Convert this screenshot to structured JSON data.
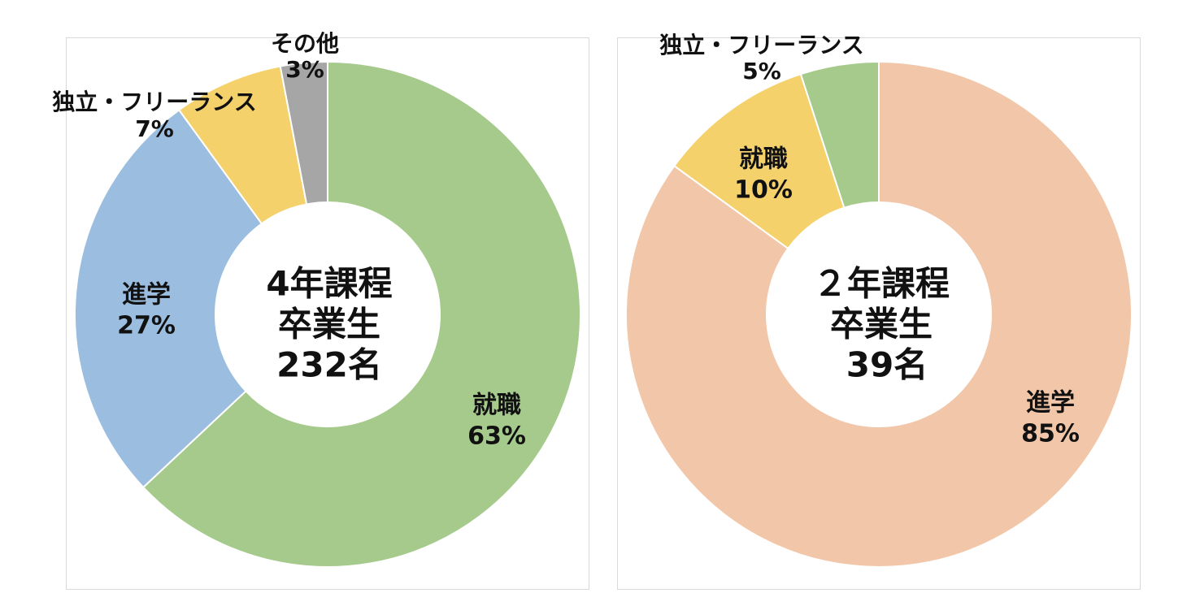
{
  "chart_data": [
    {
      "type": "pie",
      "subtype": "donut",
      "center_title": {
        "line1": "4年課程",
        "line2": "卒業生",
        "line3": "232名"
      },
      "slices": [
        {
          "label": "就職",
          "value": 63,
          "value_label": "63%",
          "color": "#a5ca8b"
        },
        {
          "label": "進学",
          "value": 27,
          "value_label": "27%",
          "color": "#9bbde0"
        },
        {
          "label": "独立・フリーランス",
          "value": 7,
          "value_label": "7%",
          "color": "#f5d16c"
        },
        {
          "label": "その他",
          "value": 3,
          "value_label": "3%",
          "color": "#a6a6a6"
        }
      ],
      "start": "12 o'clock",
      "direction": "clockwise",
      "legend": "none"
    },
    {
      "type": "pie",
      "subtype": "donut",
      "center_title": {
        "line1": "２年課程",
        "line2": "卒業生",
        "line3": "39名"
      },
      "slices": [
        {
          "label": "進学",
          "value": 85,
          "value_label": "85%",
          "color": "#f2c6a8"
        },
        {
          "label": "就職",
          "value": 10,
          "value_label": "10%",
          "color": "#f5d16c"
        },
        {
          "label": "独立・フリーランス",
          "value": 5,
          "value_label": "5%",
          "color": "#a5ca8b"
        }
      ],
      "start": "12 o'clock",
      "direction": "clockwise",
      "legend": "none"
    }
  ]
}
